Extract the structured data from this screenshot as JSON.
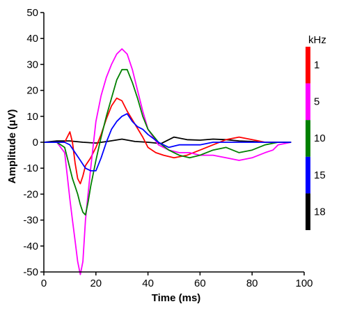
{
  "chart_data": {
    "type": "line",
    "xlabel": "Time (ms)",
    "ylabel": "Amplitude (μV)",
    "xlim": [
      0,
      100
    ],
    "ylim": [
      -50,
      50
    ],
    "xticks": [
      "0",
      "20",
      "40",
      "60",
      "80",
      "100"
    ],
    "yticks": [
      "50",
      "40",
      "30",
      "20",
      "10",
      "0",
      "-10",
      "-20",
      "-30",
      "-40",
      "-50"
    ],
    "grid": false,
    "legend": {
      "title": "kHz",
      "placement": "right",
      "entries": [
        {
          "label": "1",
          "color": "#ff0000"
        },
        {
          "label": "5",
          "color": "#ff00ff"
        },
        {
          "label": "10",
          "color": "#008000"
        },
        {
          "label": "15",
          "color": "#0000ff"
        },
        {
          "label": "18",
          "color": "#000000"
        }
      ]
    },
    "series": [
      {
        "name": "18",
        "color": "#000000",
        "x": [
          0,
          5,
          10,
          15,
          20,
          25,
          30,
          35,
          40,
          45,
          50,
          55,
          60,
          65,
          70,
          75,
          80,
          85,
          90,
          95
        ],
        "y": [
          0,
          0.5,
          0.5,
          0,
          -0.3,
          0.4,
          1.2,
          0.3,
          0,
          -0.5,
          2,
          1,
          0.8,
          1.2,
          1,
          0.5,
          0.3,
          0,
          0,
          0
        ]
      },
      {
        "name": "1",
        "color": "#ff0000",
        "x": [
          0,
          5,
          8,
          10,
          11,
          12,
          13,
          14,
          15,
          16,
          18,
          20,
          22,
          24,
          26,
          28,
          30,
          32,
          35,
          38,
          40,
          43,
          46,
          50,
          55,
          60,
          65,
          70,
          75,
          80,
          85,
          90,
          95
        ],
        "y": [
          0,
          0,
          0,
          4,
          0,
          -8,
          -14,
          -16,
          -13,
          -9,
          -6,
          -2,
          3,
          9,
          14,
          17,
          16,
          12,
          7,
          2,
          -2,
          -4,
          -5,
          -6,
          -5,
          -3,
          -1,
          1,
          2,
          1,
          0,
          0,
          0
        ]
      },
      {
        "name": "5",
        "color": "#ff00ff",
        "x": [
          0,
          5,
          8,
          9,
          10,
          11,
          12,
          13,
          14,
          15,
          16,
          18,
          20,
          22,
          24,
          26,
          28,
          30,
          32,
          34,
          36,
          38,
          40,
          44,
          48,
          52,
          56,
          60,
          65,
          70,
          75,
          80,
          85,
          88,
          90,
          95
        ],
        "y": [
          0,
          0,
          -4,
          -13,
          -22,
          -30,
          -38,
          -46,
          -51,
          -46,
          -30,
          -10,
          8,
          18,
          25,
          30,
          34,
          36,
          34,
          28,
          20,
          12,
          5,
          -1,
          -3,
          -4,
          -4,
          -5,
          -5,
          -6,
          -7,
          -6,
          -4,
          -3,
          -1,
          0
        ]
      },
      {
        "name": "10",
        "color": "#008000",
        "x": [
          0,
          5,
          8,
          9,
          10,
          11,
          12,
          13,
          14,
          15,
          16,
          17,
          18,
          20,
          22,
          24,
          26,
          28,
          30,
          32,
          34,
          36,
          38,
          40,
          44,
          48,
          52,
          56,
          60,
          65,
          70,
          75,
          80,
          85,
          90,
          95
        ],
        "y": [
          0,
          0,
          -2,
          -6,
          -10,
          -14,
          -17,
          -20,
          -24,
          -27,
          -28,
          -23,
          -17,
          -7,
          2,
          10,
          17,
          24,
          28,
          28,
          23,
          17,
          10,
          5,
          0,
          -3,
          -5,
          -6,
          -5,
          -3,
          -2,
          -4,
          -3,
          -1,
          0,
          0
        ]
      },
      {
        "name": "15",
        "color": "#0000ff",
        "x": [
          0,
          5,
          8,
          10,
          12,
          14,
          16,
          18,
          20,
          22,
          24,
          26,
          28,
          30,
          32,
          34,
          36,
          38,
          40,
          44,
          48,
          52,
          56,
          60,
          65,
          70,
          75,
          80,
          85,
          90,
          95
        ],
        "y": [
          0,
          0,
          0,
          -1,
          -4,
          -7,
          -10,
          -11,
          -11,
          -6,
          0,
          5,
          8,
          10,
          11,
          8,
          6,
          5,
          3,
          0,
          -2,
          -1,
          -1,
          -1,
          0,
          0,
          0,
          0,
          0,
          0,
          0
        ]
      }
    ]
  }
}
